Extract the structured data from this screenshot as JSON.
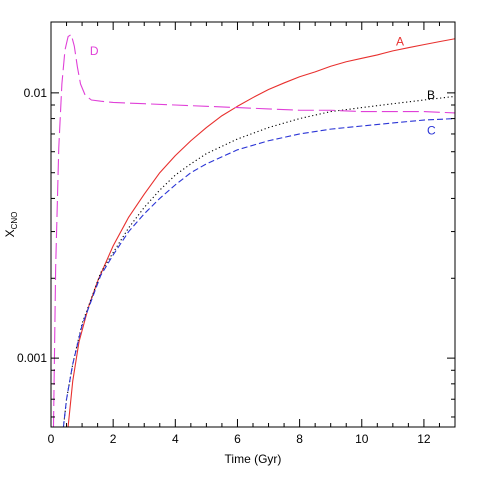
{
  "chart_data": {
    "type": "line",
    "title": "",
    "xlabel": "Time (Gyr)",
    "ylabel": {
      "main": "X",
      "sub": "CNO"
    },
    "xlim": [
      0,
      13
    ],
    "ylim": [
      0.00055,
      0.0185
    ],
    "yscale": "log",
    "grid": false,
    "x_ticks": [
      0,
      2,
      4,
      6,
      8,
      10,
      12
    ],
    "x_minor_step": 0.5,
    "y_ticks": [
      {
        "value": 0.001,
        "label": "0.001"
      },
      {
        "value": 0.01,
        "label": "0.01"
      }
    ],
    "series": [
      {
        "name": "A",
        "color": "#e8302e",
        "dash": "solid",
        "label_at": [
          11.1,
          0.0156
        ],
        "points": [
          [
            0.55,
            0.00055
          ],
          [
            0.7,
            0.00082
          ],
          [
            0.9,
            0.00115
          ],
          [
            1.2,
            0.00155
          ],
          [
            1.5,
            0.00195
          ],
          [
            2,
            0.00265
          ],
          [
            2.5,
            0.0034
          ],
          [
            3,
            0.00415
          ],
          [
            3.5,
            0.005
          ],
          [
            4,
            0.0058
          ],
          [
            4.5,
            0.0066
          ],
          [
            5,
            0.0074
          ],
          [
            5.5,
            0.0082
          ],
          [
            6,
            0.0089
          ],
          [
            6.5,
            0.0096
          ],
          [
            7,
            0.0103
          ],
          [
            7.5,
            0.0109
          ],
          [
            8,
            0.0115
          ],
          [
            8.5,
            0.012
          ],
          [
            9,
            0.0126
          ],
          [
            9.5,
            0.0131
          ],
          [
            10,
            0.0135
          ],
          [
            10.5,
            0.0139
          ],
          [
            11,
            0.0144
          ],
          [
            11.5,
            0.0148
          ],
          [
            12,
            0.0152
          ],
          [
            12.5,
            0.0156
          ],
          [
            13,
            0.016
          ]
        ]
      },
      {
        "name": "B",
        "color": "#000000",
        "dash": "dotted",
        "label_at": [
          12.1,
          0.0098
        ],
        "points": [
          [
            0.4,
            0.00055
          ],
          [
            0.5,
            0.0007
          ],
          [
            0.7,
            0.00095
          ],
          [
            1,
            0.00135
          ],
          [
            1.3,
            0.00168
          ],
          [
            1.6,
            0.0021
          ],
          [
            2,
            0.0025
          ],
          [
            2.5,
            0.0031
          ],
          [
            3,
            0.0037
          ],
          [
            3.5,
            0.0043
          ],
          [
            4,
            0.0049
          ],
          [
            4.5,
            0.0054
          ],
          [
            5,
            0.0059
          ],
          [
            6,
            0.0067
          ],
          [
            7,
            0.0074
          ],
          [
            8,
            0.008
          ],
          [
            9,
            0.0085
          ],
          [
            10,
            0.0088
          ],
          [
            11,
            0.0091
          ],
          [
            12,
            0.0094
          ],
          [
            13,
            0.0097
          ]
        ]
      },
      {
        "name": "C",
        "color": "#2b35d6",
        "dash": "dashed",
        "label_at": [
          12.1,
          0.0072
        ],
        "points": [
          [
            0.4,
            0.00055
          ],
          [
            0.5,
            0.0007
          ],
          [
            0.7,
            0.00095
          ],
          [
            1,
            0.00133
          ],
          [
            1.3,
            0.00165
          ],
          [
            1.6,
            0.00205
          ],
          [
            2,
            0.00245
          ],
          [
            2.5,
            0.003
          ],
          [
            3,
            0.0035
          ],
          [
            3.5,
            0.004
          ],
          [
            4,
            0.0045
          ],
          [
            4.5,
            0.005
          ],
          [
            5,
            0.0054
          ],
          [
            6,
            0.0061
          ],
          [
            7,
            0.0066
          ],
          [
            8,
            0.007
          ],
          [
            9,
            0.0073
          ],
          [
            10,
            0.0075
          ],
          [
            11,
            0.0077
          ],
          [
            12,
            0.0079
          ],
          [
            13,
            0.008
          ]
        ]
      },
      {
        "name": "D",
        "color": "#e040d8",
        "dash": "longdash",
        "label_at": [
          1.25,
          0.0144
        ],
        "points": [
          [
            0.08,
            0.00055
          ],
          [
            0.15,
            0.0022
          ],
          [
            0.25,
            0.0062
          ],
          [
            0.35,
            0.0108
          ],
          [
            0.45,
            0.0145
          ],
          [
            0.55,
            0.0163
          ],
          [
            0.65,
            0.0166
          ],
          [
            0.75,
            0.015
          ],
          [
            0.85,
            0.0125
          ],
          [
            0.95,
            0.0108
          ],
          [
            1.1,
            0.0098
          ],
          [
            1.3,
            0.0094
          ],
          [
            1.6,
            0.0093
          ],
          [
            2,
            0.0092
          ],
          [
            3,
            0.0091
          ],
          [
            4,
            0.009
          ],
          [
            5,
            0.0089
          ],
          [
            6,
            0.0088
          ],
          [
            7,
            0.0087
          ],
          [
            8,
            0.0086
          ],
          [
            9,
            0.0086
          ],
          [
            10,
            0.0085
          ],
          [
            11,
            0.0085
          ],
          [
            12,
            0.0085
          ],
          [
            13,
            0.0084
          ]
        ]
      }
    ]
  }
}
